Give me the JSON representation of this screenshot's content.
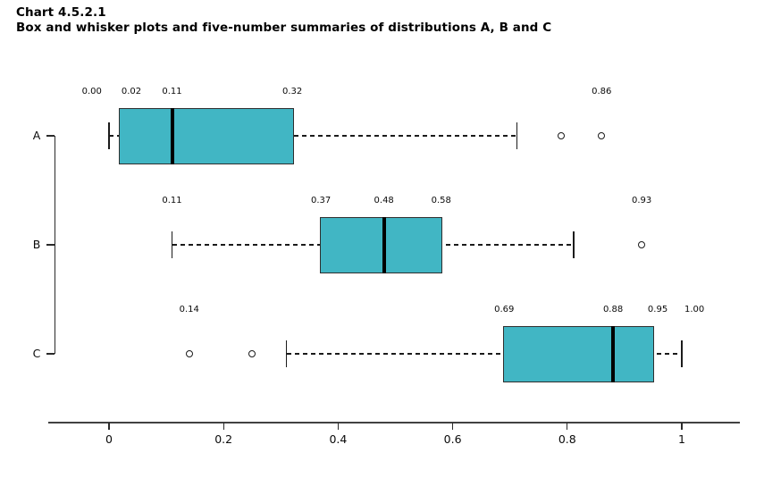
{
  "title": {
    "line1": "Chart 4.5.2.1",
    "line2": "Box and whisker plots and five-number summaries of distributions A, B and C"
  },
  "chart_data": {
    "type": "boxplot",
    "orientation": "horizontal",
    "title": "Box and whisker plots and five-number summaries of distributions A, B and C",
    "xlim": [
      0,
      1
    ],
    "grid": false,
    "box_fill_color": "#41b6c4",
    "x_axis_ticks": [
      {
        "label": "0",
        "value": 0.0
      },
      {
        "label": "0.2",
        "value": 0.2
      },
      {
        "label": "0.4",
        "value": 0.4
      },
      {
        "label": "0.6",
        "value": 0.6
      },
      {
        "label": "0.8",
        "value": 0.8
      },
      {
        "label": "1",
        "value": 1.0
      }
    ],
    "series": [
      {
        "name": "A",
        "five_number_summary": [
          0.0,
          0.02,
          0.11,
          0.32,
          0.86
        ],
        "q1": 0.02,
        "median": 0.11,
        "q3": 0.32,
        "whisker_low": 0.0,
        "whisker_high": 0.712,
        "outliers": [
          0.79,
          0.86
        ],
        "labels": [
          {
            "text": "0.00",
            "at": -0.03
          },
          {
            "text": "0.02",
            "at": 0.039
          },
          {
            "text": "0.11",
            "at": 0.11
          },
          {
            "text": "0.32",
            "at": 0.32
          },
          {
            "text": "0.86",
            "at": 0.86
          }
        ]
      },
      {
        "name": "B",
        "five_number_summary": [
          0.11,
          0.37,
          0.48,
          0.58,
          0.93
        ],
        "q1": 0.37,
        "median": 0.48,
        "q3": 0.58,
        "whisker_low": 0.11,
        "whisker_high": 0.811,
        "outliers": [
          0.93
        ],
        "labels": [
          {
            "text": "0.11",
            "at": 0.11
          },
          {
            "text": "0.37",
            "at": 0.37
          },
          {
            "text": "0.48",
            "at": 0.48
          },
          {
            "text": "0.58",
            "at": 0.58
          },
          {
            "text": "0.93",
            "at": 0.93
          }
        ]
      },
      {
        "name": "C",
        "five_number_summary": [
          0.14,
          0.69,
          0.88,
          0.95,
          1.0
        ],
        "q1": 0.69,
        "median": 0.88,
        "q3": 0.95,
        "whisker_low": 0.31,
        "whisker_high": 1.0,
        "outliers": [
          0.14,
          0.249
        ],
        "labels": [
          {
            "text": "0.14",
            "at": 0.14
          },
          {
            "text": "0.69",
            "at": 0.69
          },
          {
            "text": "0.88",
            "at": 0.88
          },
          {
            "text": "0.95",
            "at": 0.958
          },
          {
            "text": "1.00",
            "at": 1.022
          }
        ]
      }
    ]
  }
}
